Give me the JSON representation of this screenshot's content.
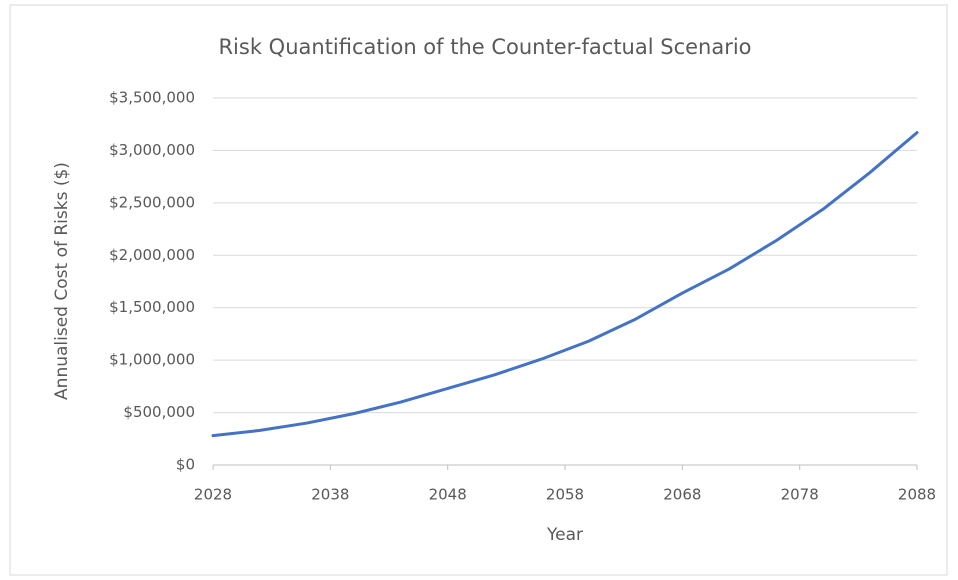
{
  "chart_data": {
    "type": "line",
    "title": "Risk Quantification of the Counter-factual Scenario",
    "x_label": "Year",
    "y_label": "Annualised Cost of Risks ($)",
    "x": [
      2028,
      2032,
      2036,
      2040,
      2044,
      2048,
      2052,
      2056,
      2060,
      2064,
      2068,
      2072,
      2076,
      2080,
      2084,
      2088
    ],
    "series": [
      {
        "name": "Annualised Cost of Risks",
        "color": "#4472c4",
        "values": [
          280000,
          330000,
          400000,
          490000,
          600000,
          730000,
          860000,
          1010000,
          1180000,
          1390000,
          1640000,
          1870000,
          2140000,
          2440000,
          2790000,
          3170000
        ]
      }
    ],
    "xlim": [
      2028,
      2088
    ],
    "xticks": [
      2028,
      2038,
      2048,
      2058,
      2068,
      2078,
      2088
    ],
    "ylim": [
      0,
      3500000
    ],
    "yticks": [
      {
        "value": 0,
        "label": "$0"
      },
      {
        "value": 500000,
        "label": "$500,000"
      },
      {
        "value": 1000000,
        "label": "$1,000,000"
      },
      {
        "value": 1500000,
        "label": "$1,500,000"
      },
      {
        "value": 2000000,
        "label": "$2,000,000"
      },
      {
        "value": 2500000,
        "label": "$2,500,000"
      },
      {
        "value": 3000000,
        "label": "$3,000,000"
      },
      {
        "value": 3500000,
        "label": "$3,500,000"
      }
    ],
    "grid": true
  }
}
